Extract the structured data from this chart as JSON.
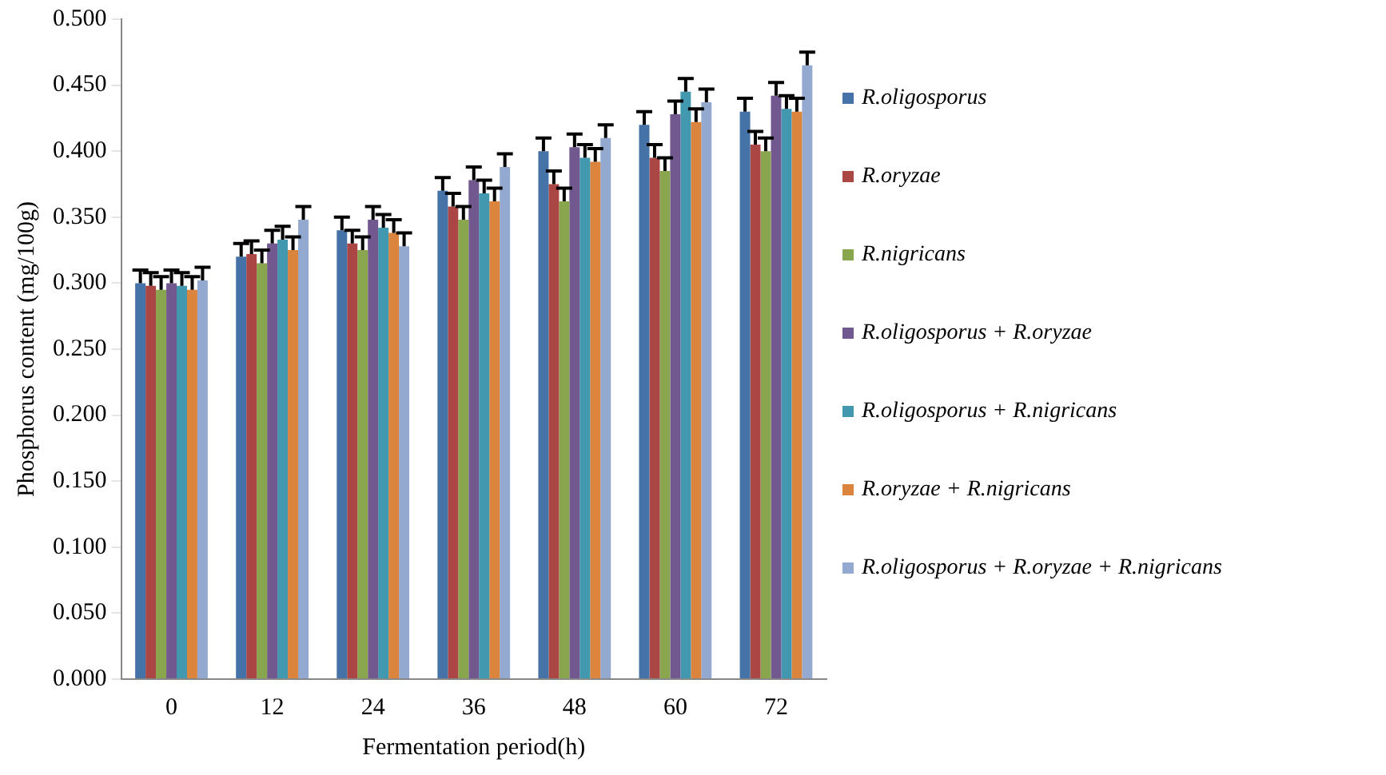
{
  "chart_data": {
    "type": "bar",
    "xlabel": "Fermentation period(h)",
    "ylabel": "Phosphorus content (mg/100g)",
    "categories": [
      "0",
      "12",
      "24",
      "36",
      "48",
      "60",
      "72"
    ],
    "ylim": [
      0,
      0.5
    ],
    "yticks": [
      {
        "value": 0,
        "label": "0.000"
      },
      {
        "value": 0.05,
        "label": "0.050"
      },
      {
        "value": 0.1,
        "label": "0.100"
      },
      {
        "value": 0.15,
        "label": "0.150"
      },
      {
        "value": 0.2,
        "label": "0.200"
      },
      {
        "value": 0.25,
        "label": "0.250"
      },
      {
        "value": 0.3,
        "label": "0.300"
      },
      {
        "value": 0.35,
        "label": "0.350"
      },
      {
        "value": 0.4,
        "label": "0.400"
      },
      {
        "value": 0.45,
        "label": "0.450"
      },
      {
        "value": 0.5,
        "label": "0.500"
      }
    ],
    "grid": false,
    "legend": "right",
    "series": [
      {
        "name": "R.oligosporus",
        "color": "#4572a7",
        "values": [
          0.3,
          0.32,
          0.34,
          0.37,
          0.4,
          0.42,
          0.43
        ],
        "errors": [
          0.01,
          0.01,
          0.01,
          0.01,
          0.01,
          0.01,
          0.01
        ]
      },
      {
        "name": "R.oryzae",
        "color": "#aa4643",
        "values": [
          0.298,
          0.322,
          0.33,
          0.358,
          0.375,
          0.395,
          0.405
        ],
        "errors": [
          0.01,
          0.01,
          0.01,
          0.01,
          0.01,
          0.01,
          0.01
        ]
      },
      {
        "name": "R.nigricans",
        "color": "#89a54e",
        "values": [
          0.295,
          0.315,
          0.325,
          0.348,
          0.362,
          0.385,
          0.4
        ],
        "errors": [
          0.01,
          0.01,
          0.01,
          0.01,
          0.01,
          0.01,
          0.01
        ]
      },
      {
        "name": "R.oligosporus + R.oryzae",
        "color": "#71588f",
        "values": [
          0.3,
          0.33,
          0.348,
          0.378,
          0.403,
          0.428,
          0.442
        ],
        "errors": [
          0.01,
          0.01,
          0.01,
          0.01,
          0.01,
          0.01,
          0.01
        ]
      },
      {
        "name": "R.oligosporus + R.nigricans",
        "color": "#4198af",
        "values": [
          0.298,
          0.333,
          0.342,
          0.368,
          0.395,
          0.445,
          0.432
        ],
        "errors": [
          0.01,
          0.01,
          0.01,
          0.01,
          0.01,
          0.01,
          0.01
        ]
      },
      {
        "name": "R.oryzae + R.nigricans",
        "color": "#db843d",
        "values": [
          0.295,
          0.325,
          0.338,
          0.362,
          0.392,
          0.422,
          0.43
        ],
        "errors": [
          0.01,
          0.01,
          0.01,
          0.01,
          0.01,
          0.01,
          0.01
        ]
      },
      {
        "name": "R.oligosporus + R.oryzae + R.nigricans",
        "color": "#93a9cf",
        "values": [
          0.302,
          0.348,
          0.328,
          0.388,
          0.41,
          0.437,
          0.465
        ],
        "errors": [
          0.01,
          0.01,
          0.01,
          0.01,
          0.01,
          0.01,
          0.01
        ]
      }
    ]
  }
}
